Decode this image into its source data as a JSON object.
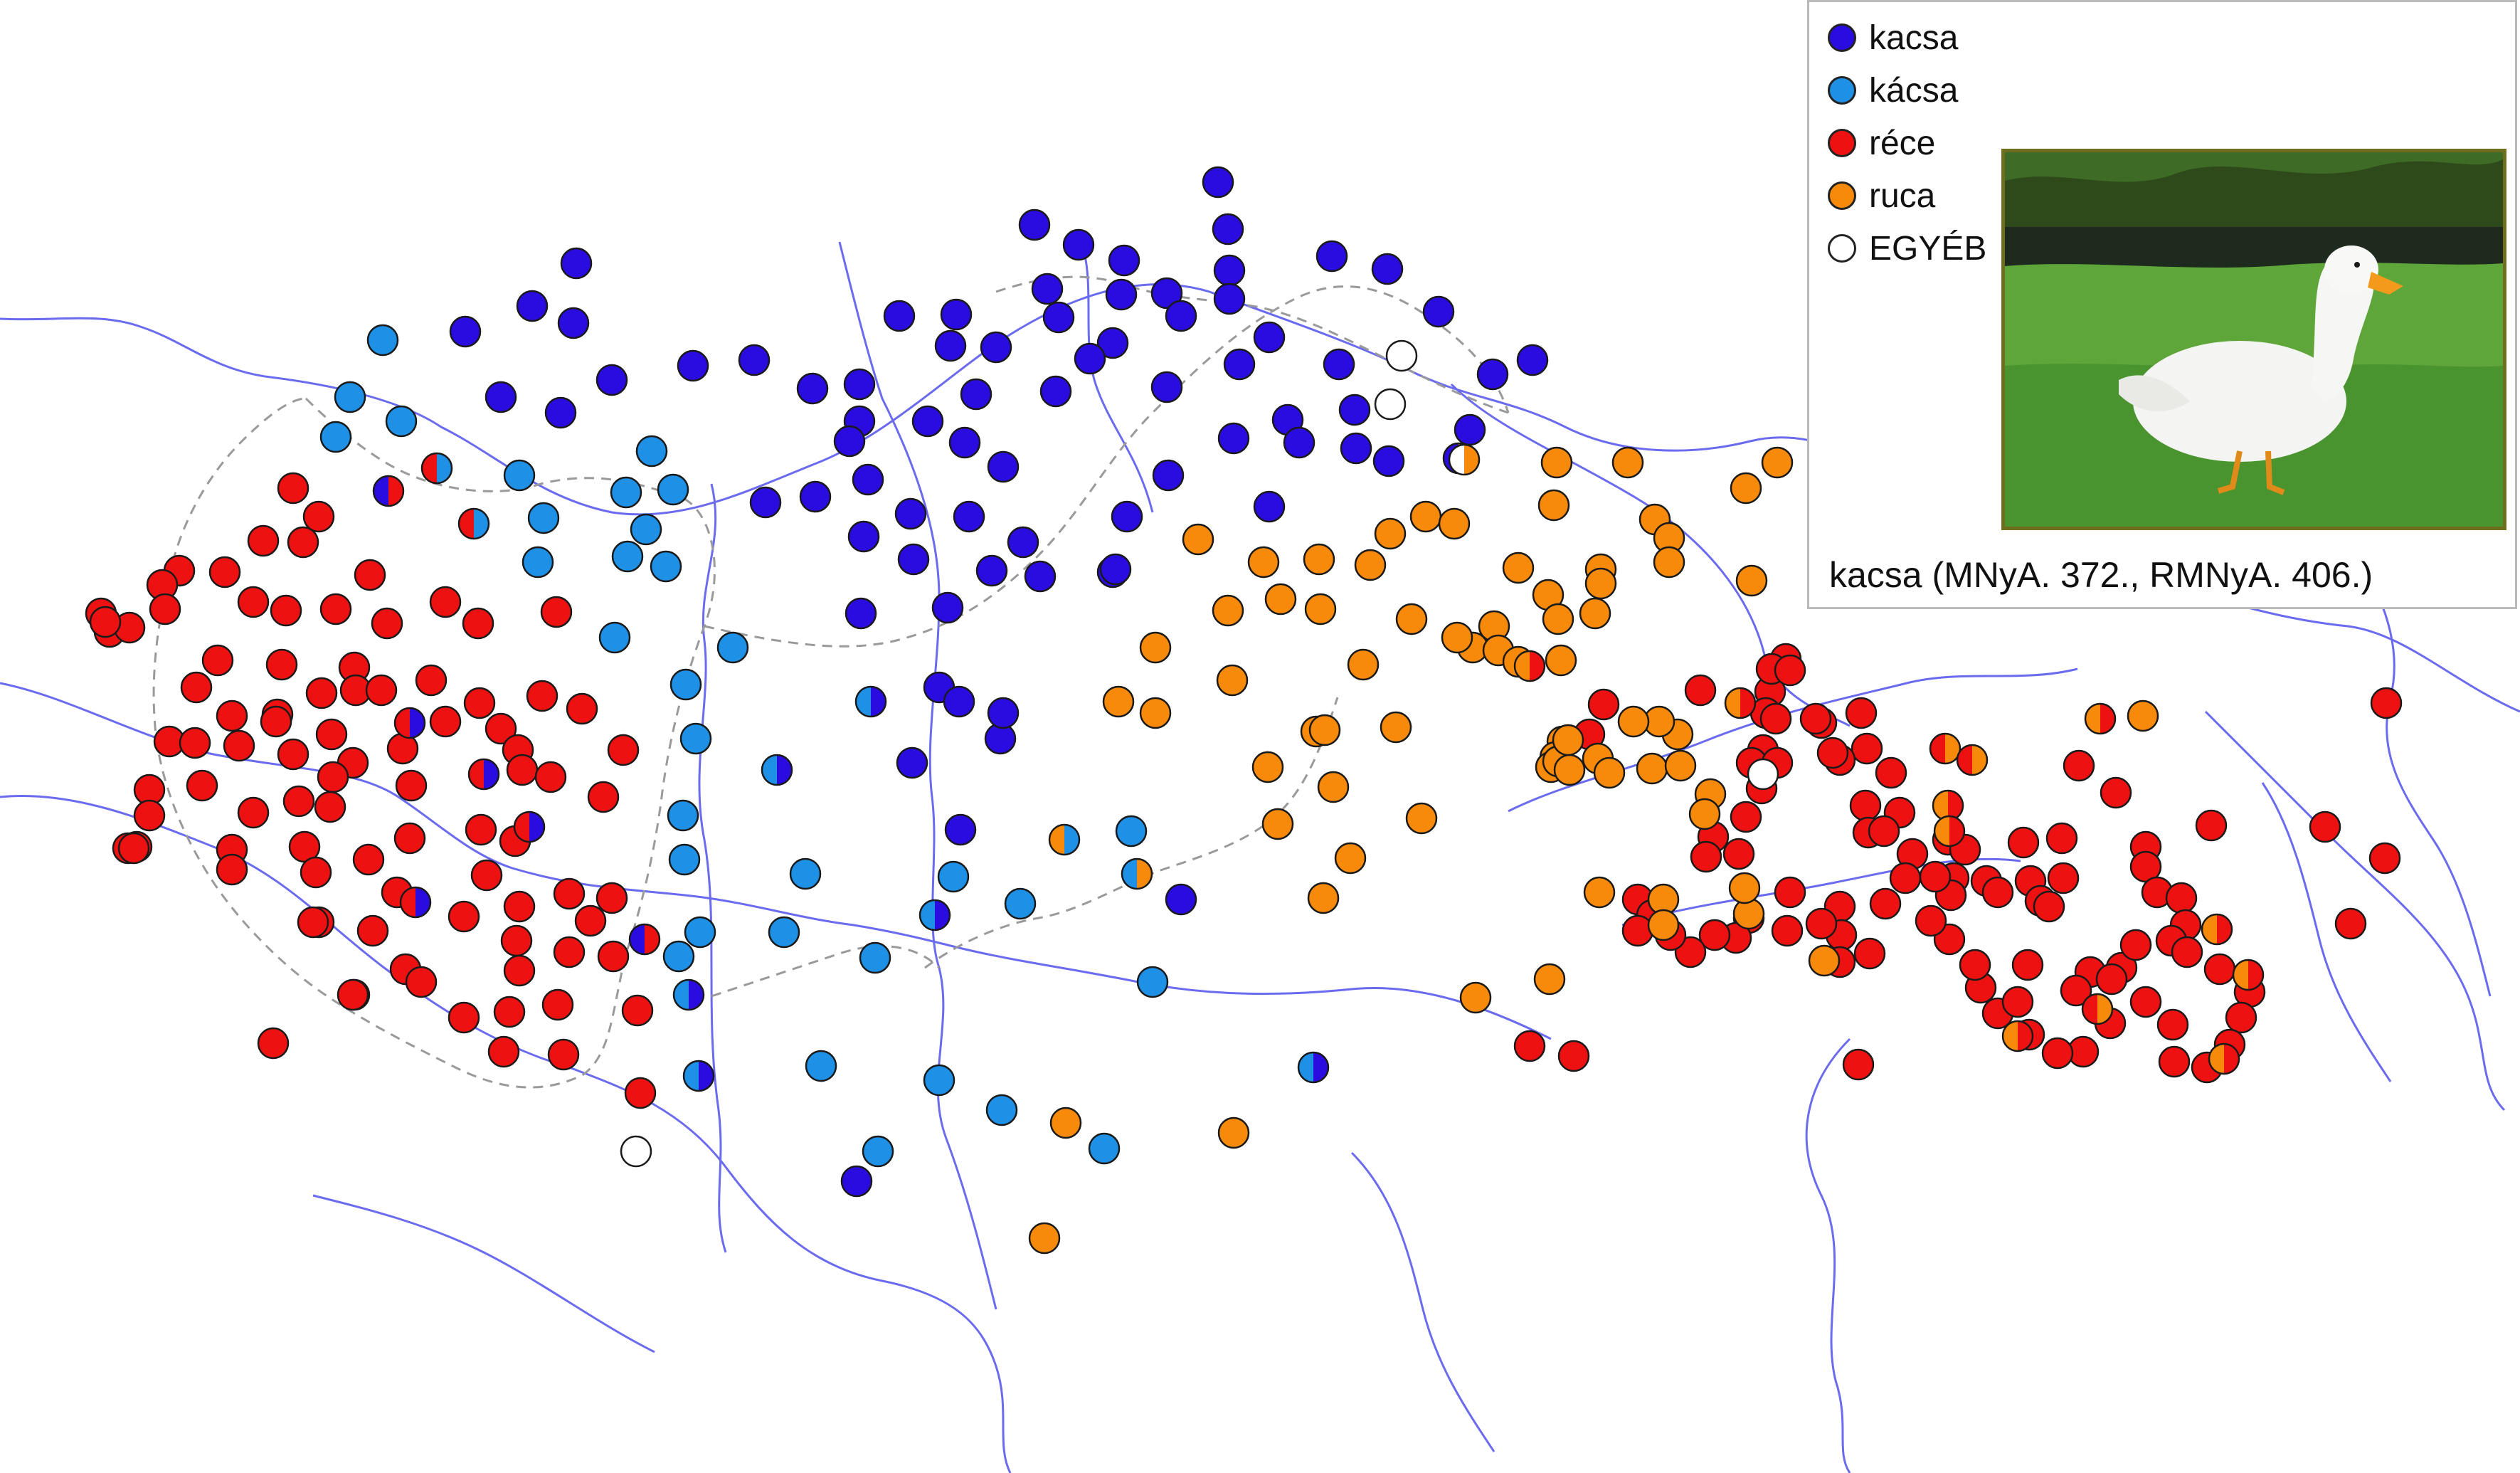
{
  "legend": {
    "items": [
      {
        "label": "kacsa",
        "color": "#2a0be0"
      },
      {
        "label": "kácsa",
        "color": "#1e90e6"
      },
      {
        "label": "réce",
        "color": "#ee1111"
      },
      {
        "label": "ruca",
        "color": "#f78a0a"
      },
      {
        "label": "EGYÉB",
        "color": "#ffffff"
      }
    ]
  },
  "caption": "kacsa (MNyA. 372., RMNyA. 406.)",
  "photo": {
    "subject": "white duck on grass"
  },
  "colors": {
    "river": "#6b6bf0",
    "border": "#9a9a9a"
  }
}
